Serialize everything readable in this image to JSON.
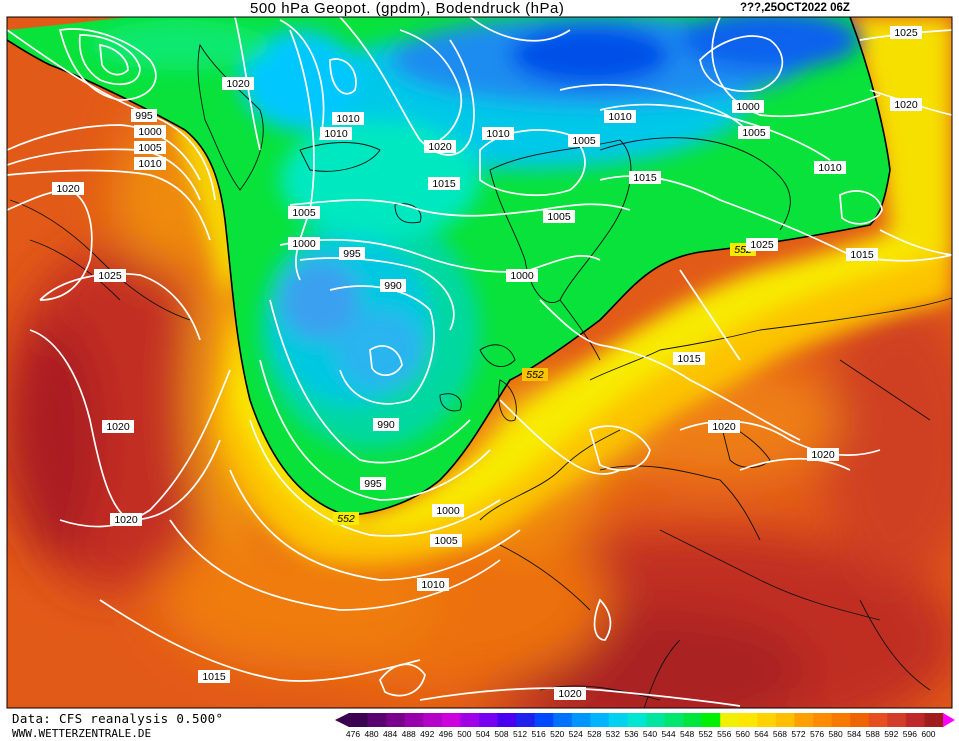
{
  "header": {
    "title": "500 hPa Geopot. (gpdm), Bodendruck (hPa)",
    "timestamp": "???,25OCT2022 06Z"
  },
  "footer": {
    "data_source": "Data: CFS reanalysis 0.500°",
    "website": "WWW.WETTERZENTRALE.DE"
  },
  "legend": {
    "levels": [
      "476",
      "480",
      "484",
      "488",
      "492",
      "496",
      "500",
      "504",
      "508",
      "512",
      "516",
      "520",
      "524",
      "528",
      "532",
      "536",
      "540",
      "544",
      "548",
      "552",
      "556",
      "560",
      "564",
      "568",
      "572",
      "576",
      "580",
      "584",
      "588",
      "592",
      "596",
      "600"
    ],
    "colors": [
      "#3c0050",
      "#5a006e",
      "#78008c",
      "#9600aa",
      "#b400c8",
      "#cc00dc",
      "#a000e6",
      "#7800f0",
      "#4800f0",
      "#2020ec",
      "#0048ff",
      "#0070ff",
      "#0094ff",
      "#00b4ff",
      "#00d2f0",
      "#00e6d2",
      "#00e6a0",
      "#00e66e",
      "#00e63c",
      "#00f000",
      "#f0f000",
      "#ffe600",
      "#ffd200",
      "#ffbe00",
      "#ffa000",
      "#ff8c00",
      "#f87800",
      "#f06400",
      "#e64e1e",
      "#d23c28",
      "#be2828",
      "#a01e1e"
    ]
  },
  "isobar_labels": [
    "1025",
    "1020",
    "1000",
    "1005",
    "1010",
    "995",
    "1000",
    "1005",
    "1010",
    "1020",
    "1010",
    "1010",
    "1020",
    "1010",
    "1005",
    "1010",
    "1015",
    "1015",
    "1005",
    "1005",
    "1000",
    "995",
    "990",
    "1000",
    "1020",
    "552",
    "1015",
    "1025",
    "1025",
    "1015",
    "552",
    "990",
    "1020",
    "1020",
    "995",
    "1000",
    "1020",
    "552",
    "1005",
    "1010",
    "1015",
    "1020"
  ]
}
